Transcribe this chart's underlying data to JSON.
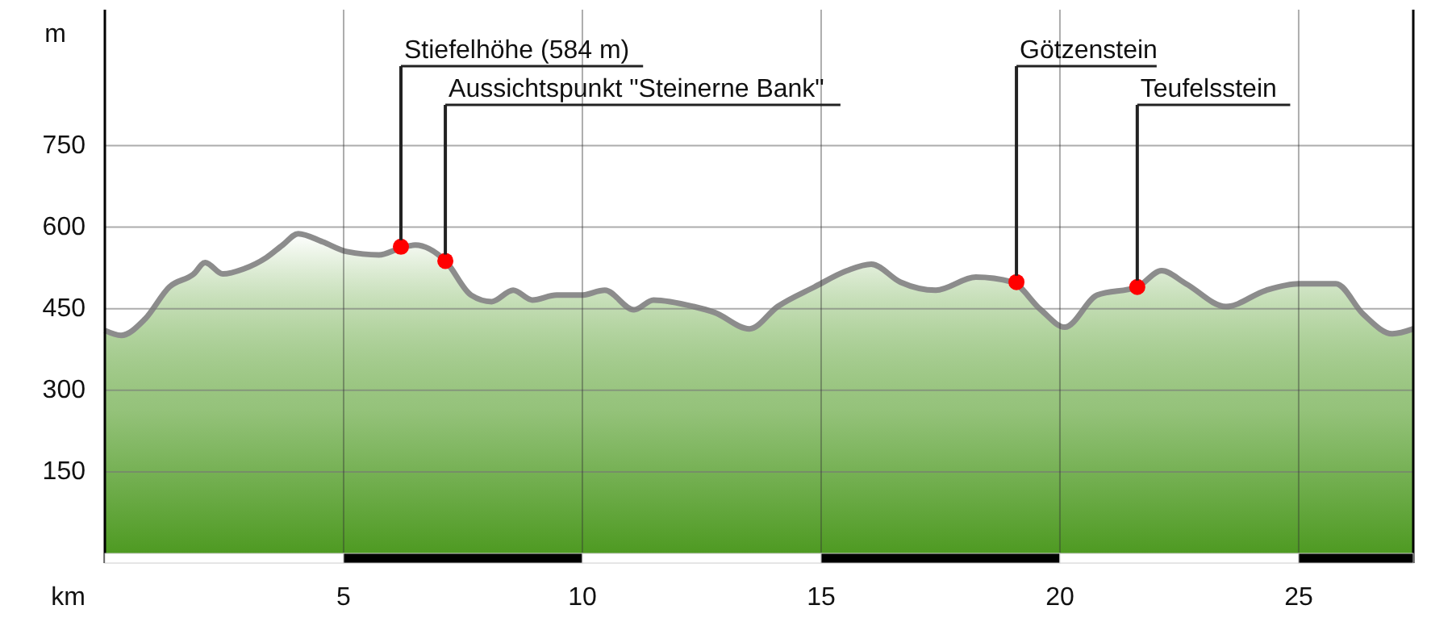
{
  "chart_data": {
    "type": "area",
    "xlabel": "km",
    "ylabel": "m",
    "xlim": [
      0,
      27.4
    ],
    "ylim": [
      0,
      1000
    ],
    "xticks": [
      5,
      10,
      15,
      20,
      25
    ],
    "yticks": [
      150,
      300,
      450,
      600,
      750
    ],
    "grid": true,
    "x": [
      0,
      0.34,
      0.84,
      1.35,
      1.86,
      2.1,
      2.47,
      2.9,
      3.38,
      3.72,
      4.05,
      4.56,
      5.07,
      5.74,
      6.18,
      6.5,
      7.13,
      7.67,
      8.1,
      8.55,
      8.95,
      9.46,
      9.97,
      10.47,
      11.08,
      11.49,
      12.33,
      12.77,
      13.5,
      14.09,
      14.86,
      15.54,
      16.05,
      16.66,
      17.4,
      18.24,
      19.0,
      19.6,
      20.1,
      20.78,
      21.62,
      22.13,
      22.64,
      23.48,
      24.32,
      25.0,
      25.78,
      26.35,
      26.96,
      27.4
    ],
    "series": [
      {
        "color": "#4e9a22",
        "values": [
          410,
          401,
          431,
          490,
          514,
          535,
          514,
          523,
          544,
          567,
          588,
          573,
          555,
          549,
          561,
          567,
          538,
          475,
          463,
          484,
          466,
          475,
          475,
          484,
          448,
          466,
          454,
          443,
          413,
          454,
          490,
          520,
          532,
          499,
          484,
          508,
          499,
          448,
          416,
          475,
          490,
          520,
          496,
          454,
          484,
          496,
          496,
          440,
          404,
          413
        ]
      },
      {
        "type": "scatter",
        "color": "#ff0000",
        "marker": "circle",
        "x": [
          6.2,
          7.13,
          19.09,
          21.62
        ],
        "values": [
          564,
          538,
          499,
          490
        ]
      }
    ],
    "annotations": [
      {
        "text": "Stiefelhöhe (584 m)",
        "x": 6.2,
        "y": 564
      },
      {
        "text": "Aussichtspunkt \"Steinerne Bank\"",
        "x": 7.13,
        "y": 538
      },
      {
        "text": "Götzenstein",
        "x": 19.09,
        "y": 499
      },
      {
        "text": "Teufelsstein",
        "x": 21.62,
        "y": 490
      }
    ]
  }
}
